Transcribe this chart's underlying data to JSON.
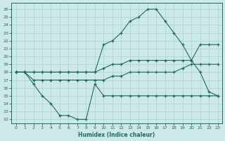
{
  "xlabel": "Humidex (Indice chaleur)",
  "bg_color": "#cce8e8",
  "line_color": "#1e6b5e",
  "grid_color": "#aed4d4",
  "xlim": [
    -0.5,
    23.5
  ],
  "ylim": [
    11.5,
    26.8
  ],
  "xticks": [
    0,
    1,
    2,
    3,
    4,
    5,
    6,
    7,
    8,
    9,
    10,
    11,
    12,
    13,
    14,
    15,
    16,
    17,
    18,
    19,
    20,
    21,
    22,
    23
  ],
  "yticks": [
    12,
    13,
    14,
    15,
    16,
    17,
    18,
    19,
    20,
    21,
    22,
    23,
    24,
    25,
    26
  ],
  "upper_curve_x": [
    0,
    1,
    2,
    3,
    4,
    5,
    6,
    7,
    8,
    9,
    10,
    11,
    12,
    13,
    14,
    15,
    16,
    17,
    18,
    19,
    20,
    21,
    22,
    23
  ],
  "upper_curve_y": [
    18,
    18,
    18,
    18,
    18,
    18,
    18,
    18,
    18,
    18,
    21.5,
    22,
    23,
    24.5,
    25,
    26,
    26,
    24.5,
    23,
    21.5,
    19.5,
    18,
    15.5,
    15
  ],
  "mid_upper_x": [
    0,
    1,
    2,
    3,
    4,
    5,
    6,
    7,
    8,
    9,
    10,
    11,
    12,
    13,
    14,
    15,
    16,
    17,
    18,
    19,
    20,
    21,
    22,
    23
  ],
  "mid_upper_y": [
    18,
    18,
    18,
    18,
    18,
    18,
    18,
    18,
    18,
    18,
    18.5,
    19,
    19,
    19.5,
    19.5,
    19.5,
    19.5,
    19.5,
    19.5,
    19.5,
    19.5,
    21.5,
    21.5,
    21.5
  ],
  "mid_lower_x": [
    0,
    1,
    2,
    3,
    4,
    5,
    6,
    7,
    8,
    9,
    10,
    11,
    12,
    13,
    14,
    15,
    16,
    17,
    18,
    19,
    20,
    21,
    22,
    23
  ],
  "mid_lower_y": [
    18,
    18,
    17,
    17,
    17,
    17,
    17,
    17,
    17,
    17,
    17,
    17.5,
    17.5,
    18,
    18,
    18,
    18,
    18,
    18,
    18.5,
    19,
    19,
    19,
    19
  ],
  "lower_dip_x": [
    0,
    1,
    2,
    3,
    4,
    5,
    6,
    7,
    8,
    9,
    10,
    11,
    12,
    13,
    14,
    15,
    16,
    17,
    18,
    19,
    20,
    21,
    22,
    23
  ],
  "lower_dip_y": [
    18,
    18,
    16.5,
    15,
    14,
    12.5,
    12.5,
    12,
    12,
    16.5,
    15,
    15,
    15,
    15,
    15,
    15,
    15,
    15,
    15,
    15,
    15,
    15,
    15,
    15
  ]
}
